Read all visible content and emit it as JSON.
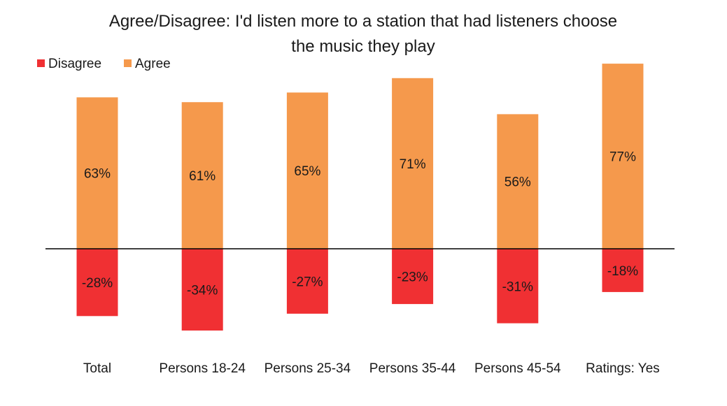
{
  "chart_data": {
    "type": "bar",
    "title_line1": "Agree/Disagree: I'd listen more to a station that had listeners choose",
    "title_line2": "the music they play",
    "categories": [
      "Total",
      "Persons 18-24",
      "Persons 25-34",
      "Persons 35-44",
      "Persons 45-54",
      "Ratings: Yes"
    ],
    "series": [
      {
        "name": "Disagree",
        "color": "#f03033",
        "values": [
          -28,
          -34,
          -27,
          -23,
          -31,
          -18
        ],
        "labels": [
          "-28%",
          "-34%",
          "-27%",
          "-23%",
          "-31%",
          "-18%"
        ]
      },
      {
        "name": "Agree",
        "color": "#f5994c",
        "values": [
          63,
          61,
          65,
          71,
          56,
          77
        ],
        "labels": [
          "63%",
          "61%",
          "65%",
          "71%",
          "56%",
          "77%"
        ]
      }
    ],
    "legend_position": "top-left",
    "grid": false,
    "stacked": true,
    "xlabel": "",
    "ylabel": ""
  }
}
